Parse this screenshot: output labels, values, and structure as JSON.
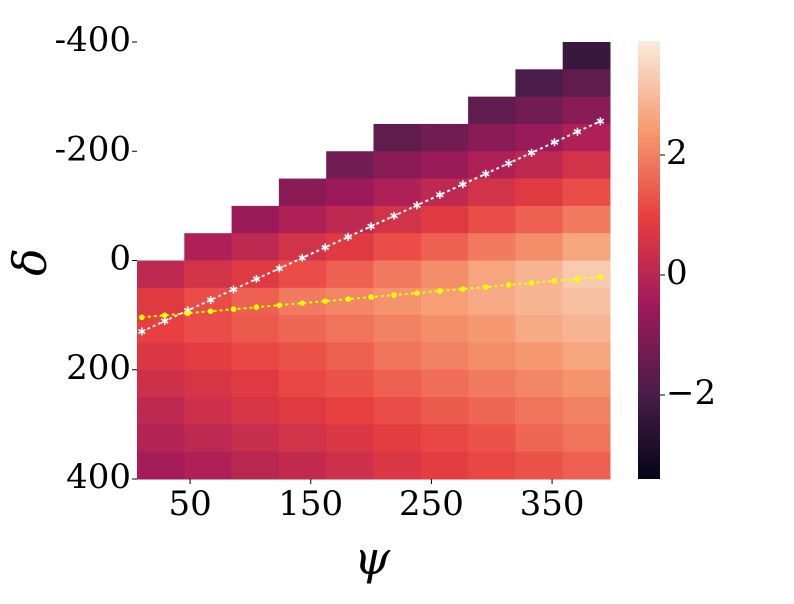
{
  "chart_data": {
    "type": "heatmap",
    "xlabel": "ψ",
    "ylabel": "δ",
    "xbins": [
      6,
      45.2,
      84.4,
      123.6,
      162.8,
      202,
      241.2,
      280.4,
      319.6,
      358.8,
      398
    ],
    "ybins": [
      -400,
      -350,
      -300,
      -250,
      -200,
      -150,
      -100,
      -50,
      0,
      50,
      100,
      150,
      200,
      250,
      300,
      350,
      400
    ],
    "z": [
      [
        null,
        null,
        null,
        null,
        null,
        null,
        null,
        null,
        null,
        -2.3
      ],
      [
        null,
        null,
        null,
        null,
        null,
        null,
        null,
        null,
        -2.0,
        -1.6
      ],
      [
        null,
        null,
        null,
        null,
        null,
        null,
        null,
        -1.6,
        -1.3,
        -0.9
      ],
      [
        null,
        null,
        null,
        null,
        null,
        -1.6,
        -1.3,
        -0.9,
        -0.6,
        -0.2
      ],
      [
        null,
        null,
        null,
        null,
        -1.3,
        -0.9,
        -0.6,
        -0.2,
        0.1,
        0.5
      ],
      [
        null,
        null,
        null,
        -0.9,
        -0.6,
        -0.2,
        0.1,
        0.5,
        0.8,
        1.2
      ],
      [
        null,
        null,
        -0.6,
        -0.2,
        0.1,
        0.5,
        0.8,
        1.2,
        1.5,
        1.9
      ],
      [
        null,
        -0.2,
        0.1,
        0.5,
        0.8,
        1.2,
        1.5,
        1.9,
        2.2,
        2.6
      ],
      [
        0.1,
        0.5,
        0.8,
        1.2,
        1.5,
        1.9,
        2.2,
        2.6,
        2.9,
        3.3
      ],
      [
        0.8,
        1.2,
        1.5,
        1.9,
        2.1,
        2.3,
        2.5,
        2.7,
        2.9,
        3.1
      ],
      [
        1.0,
        1.2,
        1.4,
        1.6,
        1.8,
        2.0,
        2.2,
        2.4,
        2.7,
        2.9
      ],
      [
        0.7,
        0.9,
        1.1,
        1.3,
        1.5,
        1.8,
        2.0,
        2.2,
        2.4,
        2.6
      ],
      [
        0.4,
        0.6,
        0.8,
        1.1,
        1.3,
        1.5,
        1.7,
        1.9,
        2.1,
        2.3
      ],
      [
        0.1,
        0.4,
        0.6,
        0.8,
        1.0,
        1.2,
        1.4,
        1.6,
        1.8,
        2.0
      ],
      [
        -0.1,
        0.1,
        0.3,
        0.5,
        0.7,
        0.9,
        1.1,
        1.3,
        1.6,
        1.8
      ],
      [
        -0.4,
        -0.2,
        0.0,
        0.2,
        0.4,
        0.7,
        0.9,
        1.1,
        1.3,
        1.5
      ]
    ],
    "colormap": [
      "#03051a",
      "#4c1d4b",
      "#a11a5b",
      "#e83f3f",
      "#f69c73",
      "#faebdd"
    ],
    "zlim": [
      -3.4,
      3.9
    ],
    "zticks": [
      {
        "value": -2,
        "label": "−2"
      },
      0,
      2
    ],
    "xlim": [
      6,
      398
    ],
    "xticks": [
      50,
      150,
      250,
      350
    ],
    "ylim": [
      -400,
      400
    ],
    "yticks": [
      -400,
      -200,
      0,
      200,
      400
    ],
    "series": [
      {
        "color": "#ffffff",
        "marker": "star",
        "x": [
          10,
          29,
          48,
          67,
          86,
          105,
          124,
          143,
          162,
          181,
          200,
          219,
          238,
          257,
          276,
          295,
          314,
          333,
          352,
          371,
          390
        ],
        "y": [
          130,
          110.75,
          91.5,
          72.25,
          53,
          33.75,
          14.5,
          -4.75,
          -24,
          -43.25,
          -62.5,
          -81.75,
          -101,
          -120.25,
          -139.5,
          -158.75,
          -178,
          -197.25,
          -216.5,
          -235.75,
          -255
        ]
      },
      {
        "color": "#ffff00",
        "marker": "circle",
        "x": [
          10,
          29,
          48,
          67,
          86,
          105,
          124,
          143,
          162,
          181,
          200,
          219,
          238,
          257,
          276,
          295,
          314,
          333,
          352,
          371,
          390
        ],
        "y": [
          104,
          100.3,
          96.6,
          92.9,
          89.2,
          85.5,
          81.8,
          78.1,
          74.4,
          70.7,
          67,
          63.3,
          59.6,
          55.9,
          52.2,
          48.5,
          44.8,
          41.1,
          37.4,
          33.7,
          30
        ]
      }
    ]
  }
}
